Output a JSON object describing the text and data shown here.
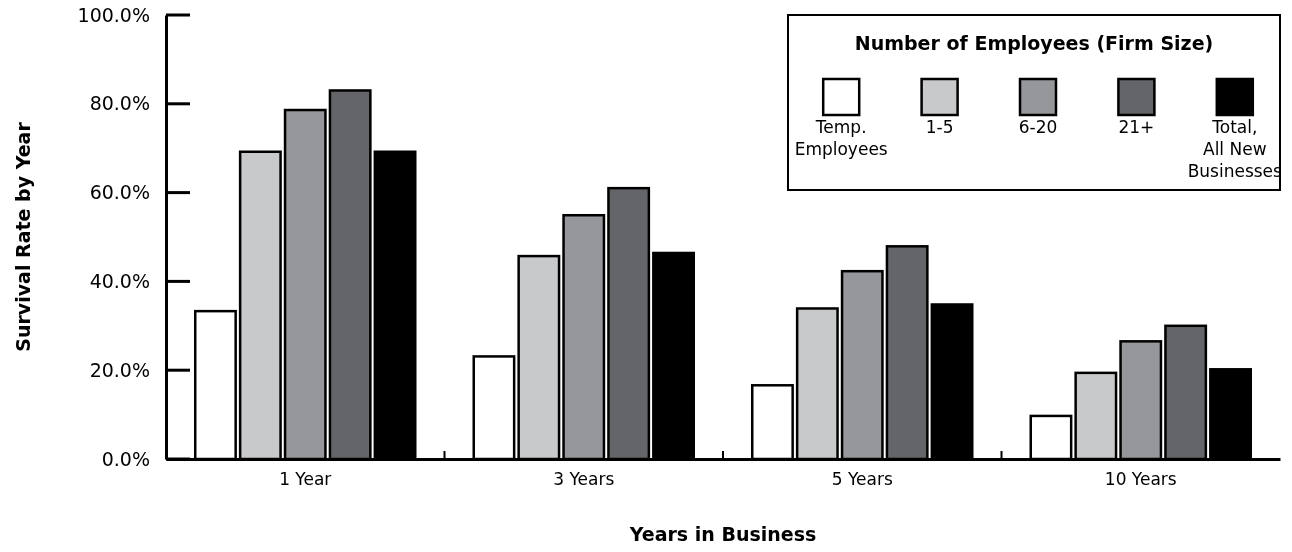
{
  "chart_data": {
    "type": "bar",
    "xlabel": "Years in Business",
    "ylabel": "Survival Rate by Year",
    "legend_title": "Number of Employees (Firm Size)",
    "categories": [
      "1 Year",
      "3 Years",
      "5 Years",
      "10 Years"
    ],
    "series": [
      {
        "name": "Temp.\nEmployees",
        "color": "#ffffff",
        "values": [
          33.3,
          23.1,
          16.6,
          9.7
        ]
      },
      {
        "name": "1-5",
        "color": "#c8c9cb",
        "values": [
          69.2,
          45.7,
          33.9,
          19.4
        ]
      },
      {
        "name": "6-20",
        "color": "#96979b",
        "values": [
          78.6,
          54.9,
          42.3,
          26.5
        ]
      },
      {
        "name": "21+",
        "color": "#646568",
        "values": [
          83.0,
          61.0,
          47.9,
          30.0
        ]
      },
      {
        "name": "Total,\nAll New\nBusinesses",
        "color": "#000000",
        "values": [
          69.2,
          46.4,
          34.8,
          20.2
        ]
      }
    ],
    "ylim": [
      0,
      100
    ],
    "yticks": [
      {
        "value": 0,
        "label": "0.0%"
      },
      {
        "value": 20,
        "label": "20.0%"
      },
      {
        "value": 40,
        "label": "40.0%"
      },
      {
        "value": 60,
        "label": "60.0%"
      },
      {
        "value": 80,
        "label": "80.0%"
      },
      {
        "value": 100,
        "label": "100.0%"
      }
    ],
    "grid": false,
    "legend": "top right"
  }
}
